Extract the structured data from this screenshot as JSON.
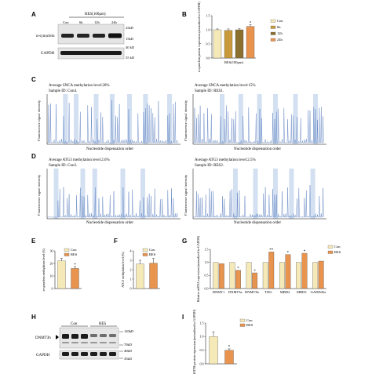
{
  "colors": {
    "con": "#f6e9b8",
    "h6": "#c99a3b",
    "h12": "#8b6f2e",
    "h24": "#e8934e",
    "res": "#e8934e",
    "trace": "#5b7fbf",
    "highlight": "#c8d8ee"
  },
  "panels": {
    "A": {
      "label": "A",
      "group_label": "RES(100μm)",
      "lanes": [
        "Con",
        "6h",
        "12h",
        "24h"
      ],
      "rows": [
        {
          "name": "α-synuclein",
          "markers": [
            "25kD",
            "15kD"
          ]
        },
        {
          "name": "GAPDH",
          "markers": [
            "40 kD",
            "35 kD"
          ]
        }
      ]
    },
    "B": {
      "label": "B",
      "chart_data": {
        "type": "bar",
        "categories": [
          "Con",
          "6h",
          "12h",
          "24h"
        ],
        "values": [
          1.0,
          0.98,
          1.0,
          1.12
        ],
        "errors": [
          0.03,
          0.05,
          0.04,
          0.06
        ],
        "ylabel": "α-synuclein protein expression (normalized to GAPDH)",
        "xlabel": "RES(100μm)",
        "ylim": [
          0,
          1.5
        ],
        "yticks": [
          "0.0",
          "0.5",
          "1.0",
          "1.5"
        ],
        "significance": [
          "",
          "",
          "",
          "*"
        ],
        "legend": [
          "Con",
          "6h",
          "12h",
          "24h"
        ]
      }
    },
    "C": {
      "label": "C",
      "left": {
        "title": "Average SNCA methylation level:20%",
        "sample": "Sample ID: Con4."
      },
      "right": {
        "title": "Average SNCA methylation level:15%",
        "sample": "Sample ID: RES1."
      },
      "ylabel": "Fluorescence signal intensity",
      "xlabel": "Nucleotide dispensation order"
    },
    "D": {
      "label": "D",
      "left": {
        "title": "Average ATG3 methylation level:2.6%",
        "sample": "Sample ID: Con3."
      },
      "right": {
        "title": "Average ATG3 methylation level:2.5%",
        "sample": "Sample ID: RES2."
      },
      "ylabel": "Fluorescence signal intensity",
      "xlabel": "Nucleotide dispensation order"
    },
    "E": {
      "label": "E",
      "chart_data": {
        "type": "bar",
        "categories": [
          "Con",
          "RES"
        ],
        "values": [
          22,
          16
        ],
        "errors": [
          2,
          1.5
        ],
        "ylabel": "α-synuclein methylation level (%)",
        "ylim": [
          0,
          30
        ],
        "yticks": [
          "0",
          "10",
          "20",
          "30"
        ],
        "significance": [
          "",
          "*"
        ],
        "legend": [
          "Con",
          "RES"
        ]
      }
    },
    "F": {
      "label": "F",
      "chart_data": {
        "type": "bar",
        "categories": [
          "Con",
          "RES"
        ],
        "values": [
          2.6,
          2.7
        ],
        "errors": [
          0.4,
          0.5
        ],
        "ylabel": "ATG3 methylation level (%)",
        "ylim": [
          0,
          4
        ],
        "yticks": [
          "0",
          "1",
          "2",
          "3",
          "4"
        ],
        "significance": [
          "",
          ""
        ],
        "legend": [
          "Con",
          "RES"
        ]
      }
    },
    "G": {
      "label": "G",
      "chart_data": {
        "type": "bar",
        "categories": [
          "DNMT1",
          "DNMT3a",
          "DNMT3b",
          "TDG",
          "MBD2",
          "MBD3",
          "GADD45a"
        ],
        "series": [
          {
            "name": "Con",
            "values": [
              1.0,
              1.0,
              1.0,
              1.0,
              1.0,
              1.0,
              1.0
            ]
          },
          {
            "name": "RES",
            "values": [
              0.95,
              0.7,
              0.6,
              1.4,
              1.3,
              1.35,
              1.05
            ]
          }
        ],
        "ylabel": "Relative mRNA expression (normalized to GAPDH)",
        "ylim": [
          0,
          1.5
        ],
        "yticks": [
          "0.0",
          "0.5",
          "1.0",
          "1.5"
        ],
        "significance": [
          "",
          "*",
          "*",
          "**",
          "*",
          "*",
          ""
        ],
        "legend": [
          "Con",
          "RES"
        ]
      }
    },
    "H": {
      "label": "H",
      "groups": [
        "Con",
        "RES"
      ],
      "rows": [
        {
          "name": "DNMT3b",
          "markers": [
            "120kD",
            "70kD"
          ]
        },
        {
          "name": "GAPDH",
          "markers": [
            "40kD",
            "35kD"
          ]
        }
      ]
    },
    "I": {
      "label": "I",
      "chart_data": {
        "type": "bar",
        "categories": [
          "Con",
          "RES"
        ],
        "values": [
          1.0,
          0.5
        ],
        "errors": [
          0.18,
          0.05
        ],
        "ylabel": "DNMT3b protein expression (normalized to GAPDH)",
        "ylim": [
          0,
          1.5
        ],
        "yticks": [
          "0.0",
          "0.5",
          "1.0",
          "1.5"
        ],
        "significance": [
          "",
          "*"
        ],
        "legend": [
          "Con",
          "RES"
        ]
      }
    }
  }
}
